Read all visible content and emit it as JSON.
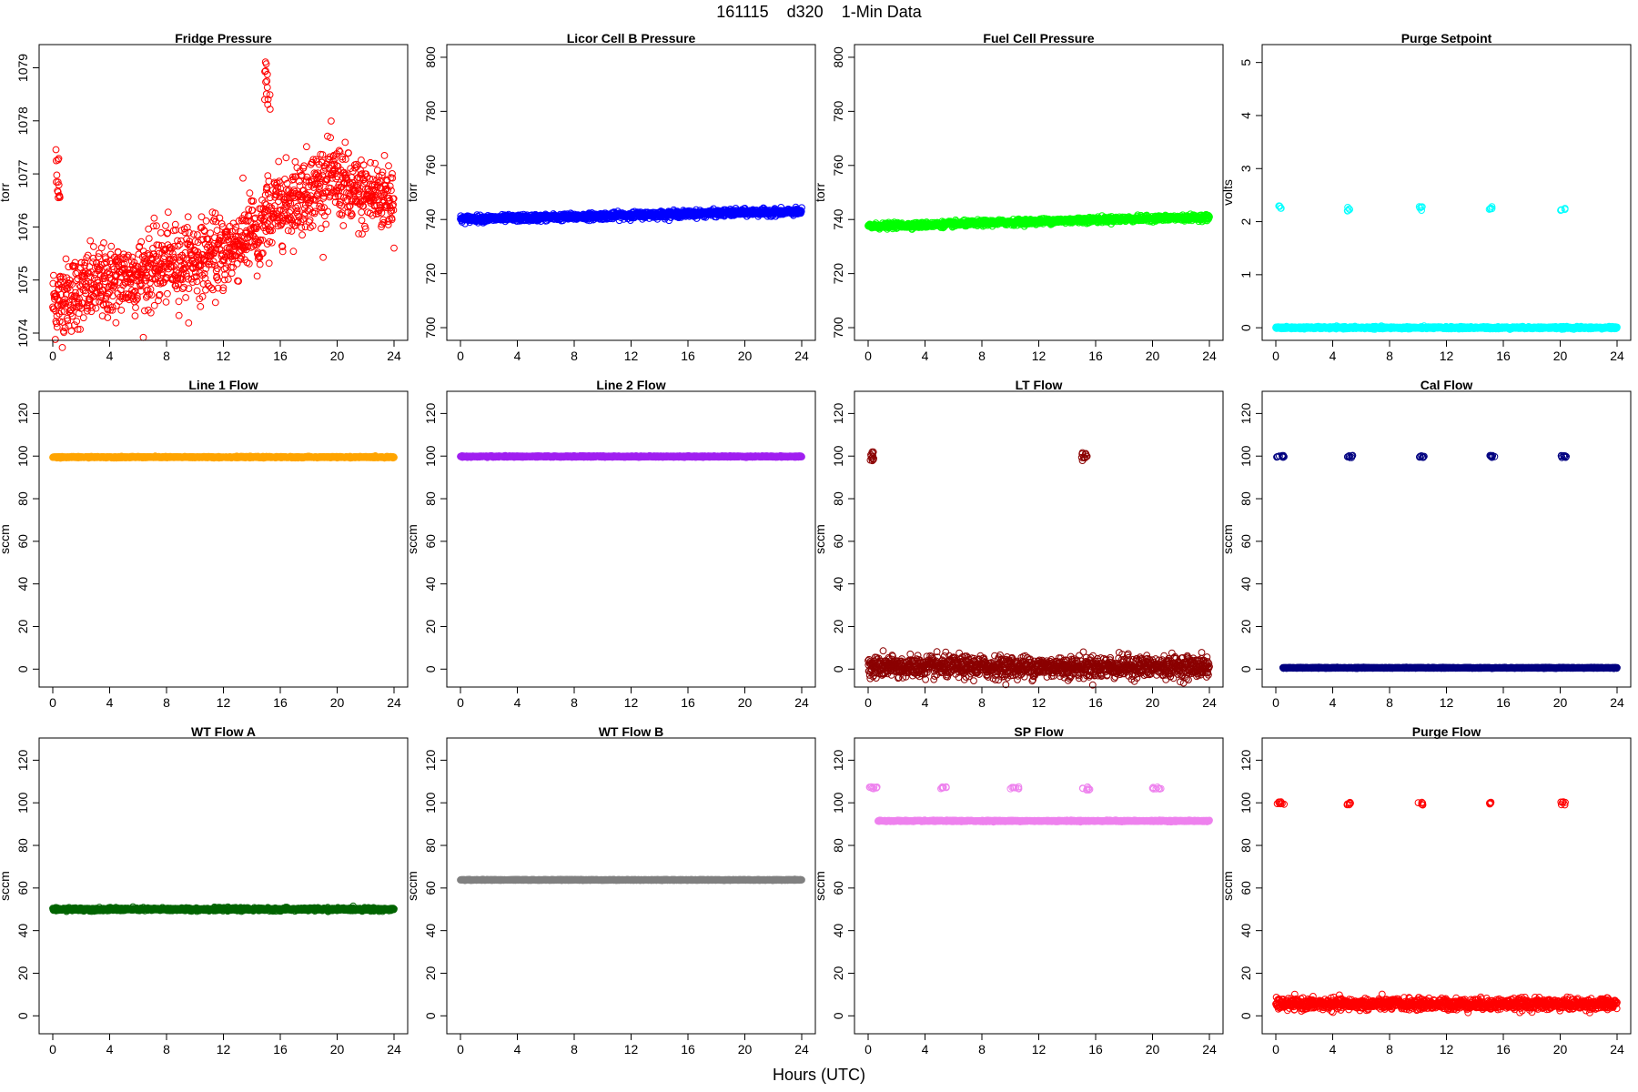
{
  "figure": {
    "title": "161115    d320    1-Min Data",
    "xlabel": "Hours (UTC)"
  },
  "chart_data": [
    {
      "type": "scatter",
      "title": "Fridge Pressure",
      "ylabel": "torr",
      "color": "#ff0000",
      "xlim": [
        0,
        24
      ],
      "ylim": [
        1074,
        1079.3
      ],
      "xticks": [
        0,
        4,
        8,
        12,
        16,
        20,
        24
      ],
      "yticks": [
        1074,
        1075,
        1076,
        1077,
        1078,
        1079
      ],
      "series": [
        {
          "kind": "noisy",
          "trend": [
            [
              0,
              1074.6
            ],
            [
              0.4,
              1074.6
            ],
            [
              1,
              1074.7
            ],
            [
              3,
              1074.9
            ],
            [
              6,
              1075.1
            ],
            [
              8,
              1075.3
            ],
            [
              10,
              1075.4
            ],
            [
              12,
              1075.5
            ],
            [
              13.5,
              1075.8
            ],
            [
              14.2,
              1076.0
            ],
            [
              14.4,
              1075.2
            ],
            [
              14.6,
              1075.9
            ],
            [
              15,
              1076.2
            ],
            [
              16,
              1076.4
            ],
            [
              18,
              1076.7
            ],
            [
              19.5,
              1076.9
            ],
            [
              20.5,
              1076.8
            ],
            [
              21,
              1076.6
            ],
            [
              24,
              1076.6
            ]
          ],
          "noise": 0.35
        },
        {
          "kind": "cluster",
          "x": [
            0.1,
            0.5
          ],
          "y": [
            1076.5,
            1077.5
          ],
          "n": 14
        },
        {
          "kind": "cluster",
          "x": [
            14.9,
            15.3
          ],
          "y": [
            1078.1,
            1079.2
          ],
          "n": 14
        }
      ]
    },
    {
      "type": "scatter",
      "title": "Licor Cell B Pressure",
      "ylabel": "torr",
      "color": "#0000ff",
      "xlim": [
        0,
        24
      ],
      "ylim": [
        698,
        802
      ],
      "xticks": [
        0,
        4,
        8,
        12,
        16,
        20,
        24
      ],
      "yticks": [
        700,
        720,
        740,
        760,
        780,
        800
      ],
      "series": [
        {
          "kind": "noisy",
          "trend": [
            [
              0,
              740.2
            ],
            [
              4,
              740.5
            ],
            [
              8,
              741.0
            ],
            [
              12,
              741.6
            ],
            [
              16,
              742.1
            ],
            [
              20,
              742.6
            ],
            [
              24,
              742.8
            ]
          ],
          "noise": 0.6
        }
      ]
    },
    {
      "type": "scatter",
      "title": "Fuel Cell Pressure",
      "ylabel": "torr",
      "color": "#00ff00",
      "xlim": [
        0,
        24
      ],
      "ylim": [
        698,
        802
      ],
      "xticks": [
        0,
        4,
        8,
        12,
        16,
        20,
        24
      ],
      "yticks": [
        700,
        720,
        740,
        760,
        780,
        800
      ],
      "series": [
        {
          "kind": "noisy",
          "trend": [
            [
              0,
              737.5
            ],
            [
              4,
              738.0
            ],
            [
              8,
              738.7
            ],
            [
              12,
              739.3
            ],
            [
              16,
              739.9
            ],
            [
              20,
              740.4
            ],
            [
              24,
              740.8
            ]
          ],
          "noise": 0.5
        }
      ]
    },
    {
      "type": "scatter",
      "title": "Purge Setpoint",
      "ylabel": "volts",
      "color": "#00ffff",
      "xlim": [
        0,
        24
      ],
      "ylim": [
        -0.1,
        5.2
      ],
      "xticks": [
        0,
        4,
        8,
        12,
        16,
        20,
        24
      ],
      "yticks": [
        0,
        1,
        2,
        3,
        4,
        5
      ],
      "series": [
        {
          "kind": "noisy",
          "trend": [
            [
              0,
              0
            ],
            [
              24,
              0
            ]
          ],
          "noise": 0.01
        },
        {
          "kind": "cluster",
          "x": [
            0.1,
            0.45
          ],
          "y": [
            2.25,
            2.32
          ],
          "n": 5
        },
        {
          "kind": "cluster",
          "x": [
            5.0,
            5.3
          ],
          "y": [
            2.2,
            2.3
          ],
          "n": 5
        },
        {
          "kind": "cluster",
          "x": [
            10.0,
            10.35
          ],
          "y": [
            2.2,
            2.3
          ],
          "n": 5
        },
        {
          "kind": "cluster",
          "x": [
            15.0,
            15.3
          ],
          "y": [
            2.2,
            2.3
          ],
          "n": 5
        },
        {
          "kind": "cluster",
          "x": [
            20.0,
            20.35
          ],
          "y": [
            2.2,
            2.3
          ],
          "n": 5
        }
      ]
    },
    {
      "type": "scatter",
      "title": "Line 1 Flow",
      "ylabel": "sccm",
      "color": "#ffa500",
      "xlim": [
        0,
        24
      ],
      "ylim": [
        -5,
        127
      ],
      "xticks": [
        0,
        4,
        8,
        12,
        16,
        20,
        24
      ],
      "yticks": [
        0,
        20,
        40,
        60,
        80,
        100,
        120
      ],
      "series": [
        {
          "kind": "noisy",
          "trend": [
            [
              0,
              99.5
            ],
            [
              24,
              99.5
            ]
          ],
          "noise": 0.15
        }
      ]
    },
    {
      "type": "scatter",
      "title": "Line 2 Flow",
      "ylabel": "sccm",
      "color": "#a020f0",
      "xlim": [
        0,
        24
      ],
      "ylim": [
        -5,
        127
      ],
      "xticks": [
        0,
        4,
        8,
        12,
        16,
        20,
        24
      ],
      "yticks": [
        0,
        20,
        40,
        60,
        80,
        100,
        120
      ],
      "series": [
        {
          "kind": "noisy",
          "trend": [
            [
              0,
              99.8
            ],
            [
              24,
              99.8
            ]
          ],
          "noise": 0.15
        }
      ]
    },
    {
      "type": "scatter",
      "title": "LT Flow",
      "ylabel": "sccm",
      "color": "#8b0000",
      "xlim": [
        0,
        24
      ],
      "ylim": [
        -5,
        127
      ],
      "xticks": [
        0,
        4,
        8,
        12,
        16,
        20,
        24
      ],
      "yticks": [
        0,
        20,
        40,
        60,
        80,
        100,
        120
      ],
      "series": [
        {
          "kind": "noisy",
          "trend": [
            [
              0,
              1.0
            ],
            [
              24,
              1.0
            ]
          ],
          "noise": 2.5
        },
        {
          "kind": "cluster",
          "x": [
            0.1,
            0.5
          ],
          "y": [
            97.5,
            102
          ],
          "n": 12
        },
        {
          "kind": "cluster",
          "x": [
            15.0,
            15.4
          ],
          "y": [
            97.5,
            102
          ],
          "n": 12
        }
      ]
    },
    {
      "type": "scatter",
      "title": "Cal Flow",
      "ylabel": "sccm",
      "color": "#000080",
      "xlim": [
        0,
        24
      ],
      "ylim": [
        -5,
        127
      ],
      "xticks": [
        0,
        4,
        8,
        12,
        16,
        20,
        24
      ],
      "yticks": [
        0,
        20,
        40,
        60,
        80,
        100,
        120
      ],
      "series": [
        {
          "kind": "noisy",
          "trend": [
            [
              0.5,
              0.6
            ],
            [
              24,
              0.6
            ]
          ],
          "noise": 0.1
        },
        {
          "kind": "cluster",
          "x": [
            0.05,
            0.6
          ],
          "y": [
            99.3,
            100.3
          ],
          "n": 10
        },
        {
          "kind": "cluster",
          "x": [
            5.0,
            5.4
          ],
          "y": [
            99.3,
            100.3
          ],
          "n": 8
        },
        {
          "kind": "cluster",
          "x": [
            10.0,
            10.5
          ],
          "y": [
            99.3,
            100.3
          ],
          "n": 8
        },
        {
          "kind": "cluster",
          "x": [
            15.0,
            15.4
          ],
          "y": [
            99.3,
            100.3
          ],
          "n": 8
        },
        {
          "kind": "cluster",
          "x": [
            20.0,
            20.5
          ],
          "y": [
            99.3,
            100.3
          ],
          "n": 8
        }
      ]
    },
    {
      "type": "scatter",
      "title": "WT Flow A",
      "ylabel": "sccm",
      "color": "#006400",
      "xlim": [
        0,
        24
      ],
      "ylim": [
        -5,
        127
      ],
      "xticks": [
        0,
        4,
        8,
        12,
        16,
        20,
        24
      ],
      "yticks": [
        0,
        20,
        40,
        60,
        80,
        100,
        120
      ],
      "series": [
        {
          "kind": "noisy",
          "trend": [
            [
              0,
              50.0
            ],
            [
              24,
              50.0
            ]
          ],
          "noise": 0.35
        }
      ]
    },
    {
      "type": "scatter",
      "title": "WT Flow B",
      "ylabel": "sccm",
      "color": "#808080",
      "xlim": [
        0,
        24
      ],
      "ylim": [
        -5,
        127
      ],
      "xticks": [
        0,
        4,
        8,
        12,
        16,
        20,
        24
      ],
      "yticks": [
        0,
        20,
        40,
        60,
        80,
        100,
        120
      ],
      "series": [
        {
          "kind": "noisy",
          "trend": [
            [
              0,
              63.8
            ],
            [
              24,
              63.8
            ]
          ],
          "noise": 0.1
        }
      ]
    },
    {
      "type": "scatter",
      "title": "SP Flow",
      "ylabel": "sccm",
      "color": "#ee82ee",
      "xlim": [
        0,
        24
      ],
      "ylim": [
        -5,
        127
      ],
      "xticks": [
        0,
        4,
        8,
        12,
        16,
        20,
        24
      ],
      "yticks": [
        0,
        20,
        40,
        60,
        80,
        100,
        120
      ],
      "series": [
        {
          "kind": "noisy",
          "trend": [
            [
              0.7,
              91.5
            ],
            [
              24,
              91.5
            ]
          ],
          "noise": 0.15
        },
        {
          "kind": "cluster",
          "x": [
            0.05,
            0.7
          ],
          "y": [
            106.5,
            107.5
          ],
          "n": 10
        },
        {
          "kind": "cluster",
          "x": [
            5.0,
            5.5
          ],
          "y": [
            106.5,
            107.5
          ],
          "n": 8
        },
        {
          "kind": "cluster",
          "x": [
            10.0,
            10.6
          ],
          "y": [
            106.5,
            107.5
          ],
          "n": 8
        },
        {
          "kind": "cluster",
          "x": [
            15.0,
            15.6
          ],
          "y": [
            106.0,
            107.5
          ],
          "n": 8
        },
        {
          "kind": "cluster",
          "x": [
            20.0,
            20.6
          ],
          "y": [
            106.5,
            107.5
          ],
          "n": 8
        }
      ]
    },
    {
      "type": "scatter",
      "title": "Purge Flow",
      "ylabel": "sccm",
      "color": "#ff0000",
      "xlim": [
        0,
        24
      ],
      "ylim": [
        -5,
        127
      ],
      "xticks": [
        0,
        4,
        8,
        12,
        16,
        20,
        24
      ],
      "yticks": [
        0,
        20,
        40,
        60,
        80,
        100,
        120
      ],
      "series": [
        {
          "kind": "noisy",
          "trend": [
            [
              0,
              5.5
            ],
            [
              24,
              5.5
            ]
          ],
          "noise": 1.3
        },
        {
          "kind": "cluster",
          "x": [
            0.1,
            0.6
          ],
          "y": [
            99.0,
            100.5
          ],
          "n": 8
        },
        {
          "kind": "cluster",
          "x": [
            5.0,
            5.3
          ],
          "y": [
            99.0,
            100.5
          ],
          "n": 6
        },
        {
          "kind": "cluster",
          "x": [
            10.0,
            10.4
          ],
          "y": [
            99.0,
            100.5
          ],
          "n": 6
        },
        {
          "kind": "cluster",
          "x": [
            15.0,
            15.3
          ],
          "y": [
            99.0,
            100.5
          ],
          "n": 6
        },
        {
          "kind": "cluster",
          "x": [
            20.0,
            20.4
          ],
          "y": [
            99.0,
            100.5
          ],
          "n": 6
        }
      ]
    }
  ]
}
